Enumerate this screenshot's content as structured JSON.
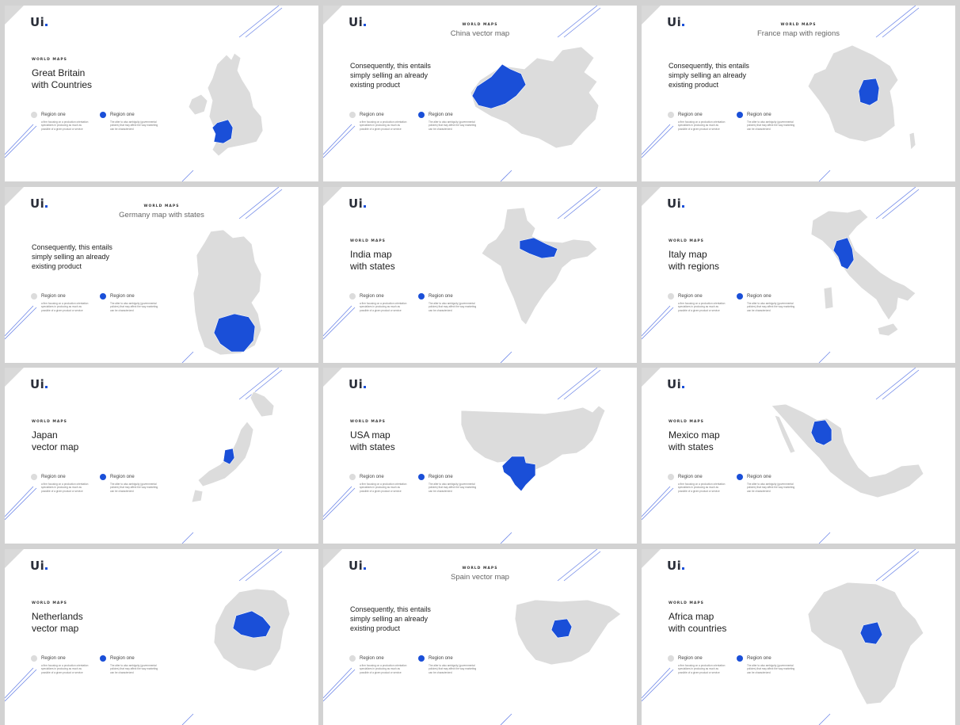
{
  "theme": {
    "accent": "#1a4fd8",
    "neutral": "#dcdcdc",
    "line": "#6f88e8"
  },
  "brand": {
    "logo_text": "Ui"
  },
  "legend": {
    "label_one": "Region one",
    "label_two": "Region one",
    "text_one": "a firm focusing on a production orientation specializes in producing as much as possible of a given product or service",
    "text_two": "The alter to also ambiguity (governmental policies) that may affect the way marketing can be characterized"
  },
  "slides": [
    {
      "kicker": "WORLD MAPS",
      "title": "Great Britain\nwith Countries",
      "subtitle": "",
      "description": "",
      "map_icon": "great-britain-map"
    },
    {
      "kicker": "WORLD MAPS",
      "title": "",
      "subtitle": "China vector map",
      "description": "Consequently, this entails\nsimply selling an already\nexisting product",
      "map_icon": "china-map"
    },
    {
      "kicker": "WORLD MAPS",
      "title": "",
      "subtitle": "France map with regions",
      "description": "Consequently, this entails\nsimply selling an already\nexisting product",
      "map_icon": "france-map"
    },
    {
      "kicker": "WORLD MAPS",
      "title": "",
      "subtitle": "Germany map with states",
      "description": "Consequently, this entails\nsimply selling an already\nexisting product",
      "map_icon": "germany-map"
    },
    {
      "kicker": "WORLD MAPS",
      "title": "India map\nwith states",
      "subtitle": "",
      "description": "",
      "map_icon": "india-map"
    },
    {
      "kicker": "WORLD MAPS",
      "title": "Italy map\nwith regions",
      "subtitle": "",
      "description": "",
      "map_icon": "italy-map"
    },
    {
      "kicker": "WORLD MAPS",
      "title": "Japan\nvector map",
      "subtitle": "",
      "description": "",
      "map_icon": "japan-map"
    },
    {
      "kicker": "WORLD MAPS",
      "title": "USA map\nwith states",
      "subtitle": "",
      "description": "",
      "map_icon": "usa-map"
    },
    {
      "kicker": "WORLD MAPS",
      "title": "Mexico map\nwith states",
      "subtitle": "",
      "description": "",
      "map_icon": "mexico-map"
    },
    {
      "kicker": "WORLD MAPS",
      "title": "Netherlands\nvector map",
      "subtitle": "",
      "description": "",
      "map_icon": "netherlands-map"
    },
    {
      "kicker": "WORLD MAPS",
      "title": "",
      "subtitle": "Spain vector map",
      "description": "Consequently, this entails\nsimply selling an already\nexisting product",
      "map_icon": "spain-map"
    },
    {
      "kicker": "WORLD MAPS",
      "title": "Africa map\nwith countries",
      "subtitle": "",
      "description": "",
      "map_icon": "africa-map"
    }
  ]
}
